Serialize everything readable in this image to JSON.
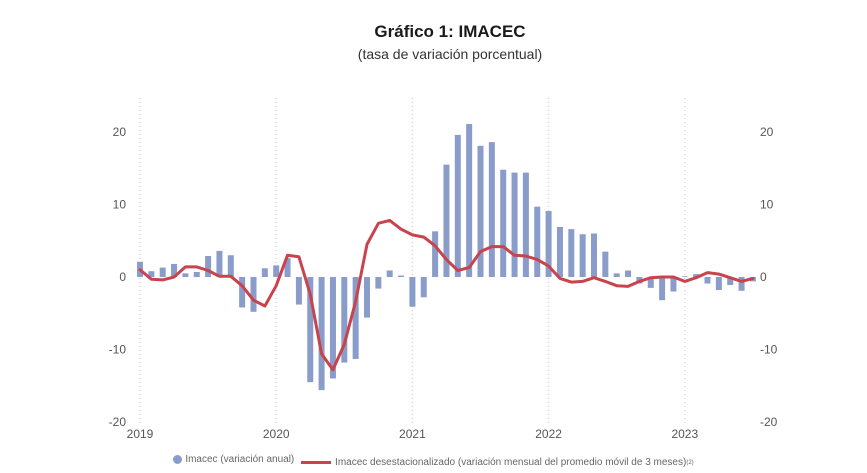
{
  "chart_data": {
    "type": "bar",
    "title": "Gráfico 1:  IMACEC",
    "subtitle": "(tasa de variación porcentual)",
    "ylim": [
      -20,
      25
    ],
    "yticks": [
      20,
      10,
      0,
      -10,
      -20
    ],
    "year_labels": [
      "2019",
      "2020",
      "2021",
      "2022",
      "2023"
    ],
    "grid": "vertical dotted lines at each year",
    "legend_position": "bottom",
    "series": [
      {
        "name": "Imacec (variación anual)",
        "kind": "bar",
        "color": "#8a9cc9",
        "values": [
          2.1,
          0.8,
          1.3,
          1.8,
          0.5,
          0.7,
          2.9,
          3.6,
          3.0,
          -4.2,
          -4.8,
          1.2,
          1.6,
          2.6,
          -3.8,
          -14.5,
          -15.6,
          -14.0,
          -11.8,
          -11.3,
          -5.6,
          -1.6,
          0.9,
          0.2,
          -4.1,
          -2.8,
          6.3,
          15.5,
          19.6,
          21.1,
          18.1,
          18.6,
          14.8,
          14.4,
          14.4,
          9.7,
          9.1,
          6.9,
          6.6,
          5.9,
          6.0,
          3.5,
          0.5,
          0.9,
          -0.9,
          -1.5,
          -3.2,
          -2.0,
          0.1,
          0.4,
          -0.9,
          -1.8,
          -1.1,
          -1.9,
          -0.6
        ]
      },
      {
        "name": "Imacec desestacionalizado (variación mensual del promedio móvil de 3 meses)",
        "name_superscript": "(2)",
        "kind": "line",
        "color": "#c8434b",
        "values": [
          1.0,
          -0.3,
          -0.4,
          0.0,
          1.4,
          1.4,
          0.9,
          0.1,
          0.1,
          -1.2,
          -3.2,
          -4.0,
          -1.2,
          3.0,
          2.8,
          -2.4,
          -10.6,
          -12.8,
          -9.3,
          -3.4,
          4.5,
          7.4,
          7.8,
          6.6,
          5.8,
          5.5,
          4.3,
          2.4,
          0.9,
          1.3,
          3.5,
          4.2,
          4.2,
          3.0,
          2.9,
          2.4,
          1.5,
          -0.2,
          -0.7,
          -0.6,
          -0.1,
          -0.6,
          -1.2,
          -1.3,
          -0.6,
          -0.1,
          0.0,
          0.0,
          -0.6,
          -0.1,
          0.6,
          0.4,
          -0.1,
          -0.6,
          -0.2
        ]
      }
    ]
  }
}
